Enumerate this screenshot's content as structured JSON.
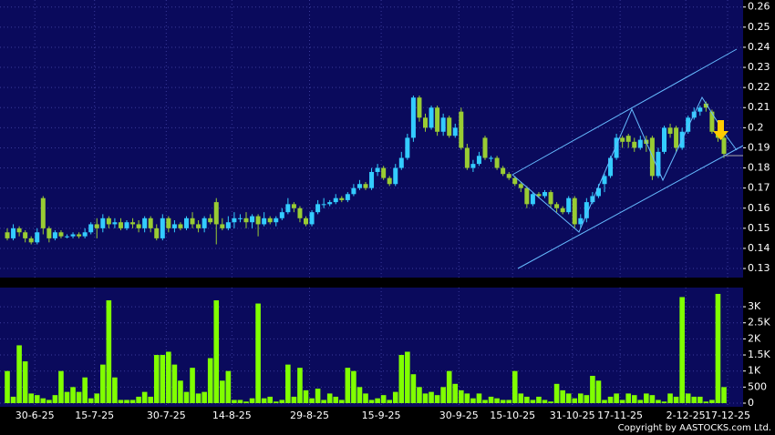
{
  "chart_data": [
    {
      "type": "candlestick",
      "open": [
        0.148,
        0.145,
        0.15,
        0.148,
        0.145,
        0.143,
        0.165,
        0.15,
        0.145,
        0.148,
        0.146,
        0.146,
        0.147,
        0.146,
        0.148,
        0.152,
        0.15,
        0.155,
        0.152,
        0.153,
        0.15,
        0.153,
        0.152,
        0.15,
        0.155,
        0.15,
        0.145,
        0.155,
        0.15,
        0.152,
        0.15,
        0.155,
        0.152,
        0.15,
        0.155,
        0.163,
        0.152,
        0.15,
        0.153,
        0.155,
        0.155,
        0.153,
        0.156,
        0.152,
        0.155,
        0.153,
        0.155,
        0.158,
        0.162,
        0.16,
        0.155,
        0.152,
        0.158,
        0.162,
        0.162,
        0.163,
        0.165,
        0.164,
        0.167,
        0.17,
        0.172,
        0.17,
        0.178,
        0.18,
        0.175,
        0.172,
        0.18,
        0.185,
        0.195,
        0.215,
        0.205,
        0.2,
        0.21,
        0.198,
        0.205,
        0.196,
        0.208,
        0.19,
        0.18,
        0.182,
        0.195,
        0.185,
        0.185,
        0.18,
        0.177,
        0.175,
        0.172,
        0.17,
        0.162,
        0.167,
        0.166,
        0.168,
        0.162,
        0.16,
        0.158,
        0.165,
        0.152,
        0.155,
        0.163,
        0.166,
        0.172,
        0.176,
        0.185,
        0.195,
        0.196,
        0.193,
        0.19,
        0.194,
        0.195,
        0.176,
        0.188,
        0.2,
        0.2,
        0.19,
        0.198,
        0.205,
        0.208,
        0.212,
        0.208,
        0.198,
        0.195
      ],
      "high": [
        0.15,
        0.152,
        0.151,
        0.149,
        0.146,
        0.15,
        0.166,
        0.151,
        0.149,
        0.149,
        0.147,
        0.148,
        0.148,
        0.15,
        0.153,
        0.155,
        0.157,
        0.156,
        0.155,
        0.155,
        0.154,
        0.155,
        0.154,
        0.156,
        0.156,
        0.152,
        0.157,
        0.156,
        0.154,
        0.153,
        0.156,
        0.158,
        0.154,
        0.156,
        0.157,
        0.165,
        0.155,
        0.156,
        0.158,
        0.157,
        0.158,
        0.157,
        0.157,
        0.158,
        0.156,
        0.156,
        0.16,
        0.165,
        0.163,
        0.161,
        0.156,
        0.159,
        0.164,
        0.165,
        0.164,
        0.167,
        0.166,
        0.168,
        0.172,
        0.174,
        0.173,
        0.18,
        0.182,
        0.181,
        0.176,
        0.182,
        0.188,
        0.197,
        0.216,
        0.216,
        0.207,
        0.211,
        0.211,
        0.207,
        0.206,
        0.202,
        0.21,
        0.192,
        0.184,
        0.188,
        0.196,
        0.186,
        0.186,
        0.181,
        0.178,
        0.176,
        0.173,
        0.171,
        0.168,
        0.168,
        0.169,
        0.169,
        0.163,
        0.161,
        0.166,
        0.166,
        0.157,
        0.165,
        0.168,
        0.172,
        0.177,
        0.186,
        0.197,
        0.196,
        0.197,
        0.195,
        0.196,
        0.196,
        0.196,
        0.19,
        0.201,
        0.202,
        0.201,
        0.2,
        0.206,
        0.21,
        0.211,
        0.213,
        0.209,
        0.199,
        0.196
      ],
      "low": [
        0.144,
        0.144,
        0.146,
        0.143,
        0.142,
        0.142,
        0.147,
        0.143,
        0.144,
        0.145,
        0.145,
        0.145,
        0.145,
        0.145,
        0.147,
        0.145,
        0.148,
        0.15,
        0.15,
        0.149,
        0.149,
        0.15,
        0.148,
        0.148,
        0.148,
        0.144,
        0.144,
        0.148,
        0.148,
        0.149,
        0.149,
        0.15,
        0.148,
        0.148,
        0.152,
        0.142,
        0.149,
        0.149,
        0.15,
        0.153,
        0.15,
        0.15,
        0.146,
        0.151,
        0.152,
        0.151,
        0.154,
        0.157,
        0.158,
        0.153,
        0.151,
        0.151,
        0.157,
        0.16,
        0.161,
        0.162,
        0.163,
        0.163,
        0.166,
        0.169,
        0.169,
        0.169,
        0.176,
        0.174,
        0.171,
        0.171,
        0.179,
        0.184,
        0.193,
        0.203,
        0.198,
        0.199,
        0.196,
        0.196,
        0.195,
        0.195,
        0.189,
        0.179,
        0.178,
        0.181,
        0.184,
        0.183,
        0.179,
        0.176,
        0.174,
        0.171,
        0.168,
        0.16,
        0.161,
        0.165,
        0.165,
        0.16,
        0.158,
        0.157,
        0.157,
        0.15,
        0.15,
        0.153,
        0.162,
        0.165,
        0.168,
        0.175,
        0.184,
        0.19,
        0.19,
        0.188,
        0.189,
        0.188,
        0.174,
        0.175,
        0.187,
        0.195,
        0.188,
        0.189,
        0.197,
        0.204,
        0.206,
        0.208,
        0.197,
        0.193,
        0.185
      ],
      "close": [
        0.145,
        0.15,
        0.148,
        0.145,
        0.143,
        0.148,
        0.15,
        0.145,
        0.148,
        0.146,
        0.146,
        0.147,
        0.146,
        0.148,
        0.152,
        0.15,
        0.155,
        0.152,
        0.153,
        0.15,
        0.153,
        0.152,
        0.15,
        0.155,
        0.15,
        0.145,
        0.155,
        0.15,
        0.152,
        0.15,
        0.155,
        0.152,
        0.15,
        0.155,
        0.153,
        0.152,
        0.15,
        0.153,
        0.155,
        0.155,
        0.153,
        0.156,
        0.152,
        0.155,
        0.153,
        0.155,
        0.158,
        0.162,
        0.16,
        0.155,
        0.152,
        0.158,
        0.162,
        0.162,
        0.163,
        0.165,
        0.164,
        0.167,
        0.17,
        0.172,
        0.17,
        0.178,
        0.18,
        0.175,
        0.172,
        0.18,
        0.185,
        0.195,
        0.215,
        0.205,
        0.2,
        0.21,
        0.198,
        0.205,
        0.196,
        0.2,
        0.19,
        0.18,
        0.182,
        0.186,
        0.185,
        0.185,
        0.18,
        0.177,
        0.175,
        0.172,
        0.17,
        0.162,
        0.167,
        0.166,
        0.168,
        0.162,
        0.16,
        0.158,
        0.165,
        0.152,
        0.155,
        0.163,
        0.166,
        0.17,
        0.176,
        0.185,
        0.195,
        0.193,
        0.193,
        0.19,
        0.194,
        0.192,
        0.176,
        0.188,
        0.2,
        0.197,
        0.19,
        0.198,
        0.205,
        0.208,
        0.21,
        0.21,
        0.198,
        0.195,
        0.187
      ],
      "up_color": "#33ccff",
      "down_color": "#99cc33",
      "ylim": [
        0.1255,
        0.2635
      ],
      "yticks": [
        0.13,
        0.14,
        0.15,
        0.16,
        0.17,
        0.18,
        0.19,
        0.2,
        0.21,
        0.22,
        0.23,
        0.24,
        0.25,
        0.26
      ],
      "grid": true
    },
    {
      "type": "bar",
      "categories": [
        null,
        null,
        null,
        null,
        "30-6-25",
        null,
        null,
        null,
        null,
        null,
        null,
        null,
        null,
        null,
        "15-7-25",
        null,
        null,
        null,
        null,
        null,
        null,
        null,
        null,
        null,
        null,
        null,
        "30-7-25",
        null,
        null,
        null,
        null,
        null,
        null,
        null,
        null,
        null,
        null,
        "14-8-25",
        null,
        null,
        null,
        null,
        null,
        null,
        null,
        null,
        null,
        null,
        null,
        null,
        "29-8-25",
        null,
        null,
        null,
        null,
        null,
        null,
        null,
        null,
        null,
        null,
        null,
        "15-9-25",
        null,
        null,
        null,
        null,
        null,
        null,
        null,
        null,
        null,
        null,
        null,
        null,
        "30-9-25",
        null,
        null,
        null,
        null,
        null,
        null,
        null,
        null,
        "15-10-25",
        null,
        null,
        null,
        null,
        null,
        null,
        null,
        null,
        null,
        "31-10-25",
        null,
        null,
        null,
        null,
        null,
        null,
        null,
        "17-11-25",
        null,
        null,
        null,
        null,
        null,
        null,
        null,
        null,
        null,
        null,
        "2-12-25",
        null,
        null,
        null,
        null,
        null,
        null,
        "17-12-25"
      ],
      "values": [
        1000,
        200,
        1800,
        1300,
        300,
        250,
        150,
        100,
        250,
        1000,
        350,
        500,
        350,
        800,
        150,
        300,
        1200,
        3200,
        800,
        100,
        100,
        100,
        200,
        350,
        200,
        1500,
        1500,
        1600,
        1200,
        700,
        350,
        1100,
        300,
        350,
        1400,
        3200,
        700,
        1000,
        100,
        100,
        50,
        150,
        3100,
        150,
        200,
        50,
        100,
        1200,
        200,
        1100,
        400,
        150,
        450,
        100,
        300,
        200,
        100,
        1100,
        1000,
        500,
        300,
        100,
        150,
        250,
        100,
        350,
        1500,
        1600,
        900,
        500,
        300,
        350,
        250,
        500,
        1000,
        600,
        400,
        300,
        150,
        300,
        100,
        200,
        150,
        100,
        100,
        1000,
        300,
        200,
        100,
        200,
        100,
        50,
        600,
        400,
        300,
        150,
        300,
        250,
        850,
        700,
        100,
        200,
        300,
        100,
        300,
        250,
        100,
        300,
        250,
        100,
        50,
        300,
        200,
        3300,
        300,
        200,
        200,
        50,
        100,
        3400,
        500
      ],
      "color": "#80ff00",
      "ylim": [
        0,
        3540
      ],
      "yticks": [
        0,
        500,
        {
          "value": 1000,
          "label": "1K"
        },
        {
          "value": 1500,
          "label": "1.5K"
        },
        {
          "value": 2000,
          "label": "2K"
        },
        {
          "value": 2500,
          "label": "2.5K"
        },
        {
          "value": 3000,
          "label": "3K"
        }
      ],
      "grid": true
    }
  ],
  "copyright": "Copyright by AASTOCKS.com Ltd."
}
